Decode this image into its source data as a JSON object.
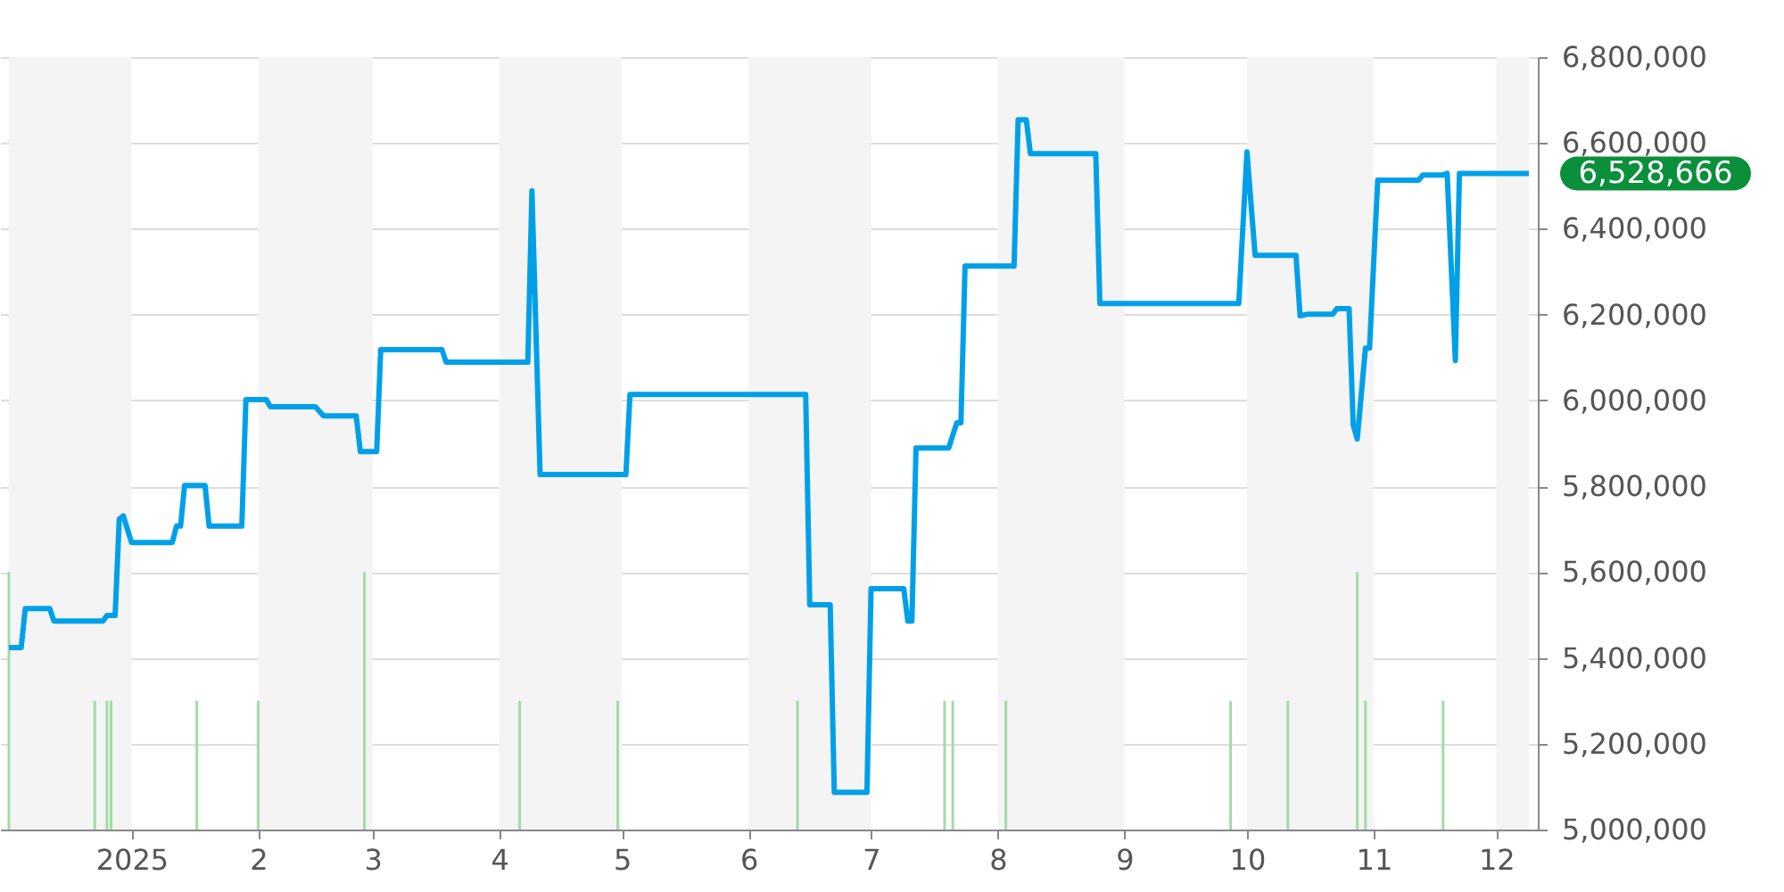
{
  "chart_data": {
    "type": "line",
    "xlim": [
      "2024-12-02",
      "2025-12-09"
    ],
    "xticks": [
      {
        "value": "2025-01-01",
        "label": "2025"
      },
      {
        "value": "2025-02-01",
        "label": "2"
      },
      {
        "value": "2025-03-01",
        "label": "3"
      },
      {
        "value": "2025-04-01",
        "label": "4"
      },
      {
        "value": "2025-05-01",
        "label": "5"
      },
      {
        "value": "2025-06-01",
        "label": "6"
      },
      {
        "value": "2025-07-01",
        "label": "7"
      },
      {
        "value": "2025-08-01",
        "label": "8"
      },
      {
        "value": "2025-09-01",
        "label": "9"
      },
      {
        "value": "2025-10-01",
        "label": "10"
      },
      {
        "value": "2025-11-01",
        "label": "11"
      },
      {
        "value": "2025-12-01",
        "label": "12"
      }
    ],
    "ylim": [
      5000000,
      6800000
    ],
    "yticks": [
      {
        "value": 5000000,
        "label": "5,000,000"
      },
      {
        "value": 5200000,
        "label": "5,200,000"
      },
      {
        "value": 5400000,
        "label": "5,400,000"
      },
      {
        "value": 5600000,
        "label": "5,600,000"
      },
      {
        "value": 5800000,
        "label": "5,800,000"
      },
      {
        "value": 6000000,
        "label": "6,000,000"
      },
      {
        "value": 6200000,
        "label": "6,200,000"
      },
      {
        "value": 6400000,
        "label": "6,400,000"
      },
      {
        "value": 6600000,
        "label": "6,600,000"
      },
      {
        "value": 6800000,
        "label": "6,800,000"
      }
    ],
    "grid": "y",
    "series": [
      {
        "type": "bar",
        "color": "#a3dba5",
        "x": [
          "2024-12-02",
          "2024-12-23",
          "2024-12-26",
          "2024-12-27",
          "2025-01-17",
          "2025-02-01",
          "2025-02-27",
          "2025-04-06",
          "2025-04-30",
          "2025-06-13",
          "2025-07-19",
          "2025-07-21",
          "2025-08-03",
          "2025-09-27",
          "2025-10-11",
          "2025-10-28",
          "2025-10-30",
          "2025-11-18"
        ],
        "values": [
          5600000,
          5300000,
          5300000,
          5300000,
          5300000,
          5300000,
          5600000,
          5300000,
          5300000,
          5300000,
          5300000,
          5300000,
          5300000,
          5300000,
          5300000,
          5600000,
          5300000,
          5300000
        ]
      },
      {
        "color": "#00a0e9",
        "x": [
          "2024-12-02",
          "2024-12-05",
          "2024-12-06",
          "2024-12-12",
          "2024-12-13",
          "2024-12-25",
          "2024-12-26",
          "2024-12-28",
          "2024-12-29",
          "2024-12-30",
          "2025-01-01",
          "2025-01-11",
          "2025-01-12",
          "2025-01-13",
          "2025-01-14",
          "2025-01-19",
          "2025-01-20",
          "2025-01-28",
          "2025-01-29",
          "2025-02-03",
          "2025-02-04",
          "2025-02-15",
          "2025-02-17",
          "2025-02-25",
          "2025-02-26",
          "2025-03-02",
          "2025-03-03",
          "2025-03-18",
          "2025-03-19",
          "2025-04-08",
          "2025-04-09",
          "2025-04-11",
          "2025-05-02",
          "2025-05-03",
          "2025-06-15",
          "2025-06-16",
          "2025-06-21",
          "2025-06-22",
          "2025-06-30",
          "2025-07-01",
          "2025-07-09",
          "2025-07-10",
          "2025-07-11",
          "2025-07-12",
          "2025-07-20",
          "2025-07-22",
          "2025-07-23",
          "2025-07-24",
          "2025-08-05",
          "2025-08-06",
          "2025-08-08",
          "2025-08-09",
          "2025-08-25",
          "2025-08-26",
          "2025-09-29",
          "2025-10-01",
          "2025-10-03",
          "2025-10-13",
          "2025-10-14",
          "2025-10-16",
          "2025-10-22",
          "2025-10-23",
          "2025-10-26",
          "2025-10-27",
          "2025-10-28",
          "2025-10-30",
          "2025-10-31",
          "2025-11-02",
          "2025-11-12",
          "2025-11-13",
          "2025-11-18",
          "2025-11-19",
          "2025-11-21",
          "2025-11-22",
          "2025-12-09"
        ],
        "values": [
          5424000,
          5424000,
          5515000,
          5515000,
          5486000,
          5486000,
          5499000,
          5499000,
          5723000,
          5731000,
          5669000,
          5669000,
          5707000,
          5707000,
          5802000,
          5802000,
          5707000,
          5707000,
          6002000,
          6002000,
          5985000,
          5985000,
          5964000,
          5964000,
          5881000,
          5881000,
          6118000,
          6118000,
          6089000,
          6089000,
          6488000,
          5827000,
          5827000,
          6014000,
          6014000,
          5524000,
          5524000,
          5087000,
          5087000,
          5561000,
          5561000,
          5486000,
          5486000,
          5889000,
          5889000,
          5948000,
          5948000,
          6313000,
          6313000,
          6654000,
          6654000,
          6575000,
          6575000,
          6226000,
          6226000,
          6579000,
          6338000,
          6338000,
          6197000,
          6201000,
          6201000,
          6214000,
          6214000,
          5943000,
          5910000,
          6122000,
          6122000,
          6513000,
          6513000,
          6525000,
          6525000,
          6529000,
          6093000,
          6528666,
          6528666
        ]
      }
    ],
    "bands": [
      {
        "axis": "x",
        "from": "2024-12-02",
        "to": "2025-01-01",
        "color": "#f4f4f4"
      },
      {
        "axis": "x",
        "from": "2025-02-01",
        "to": "2025-03-01",
        "color": "#f4f4f4"
      },
      {
        "axis": "x",
        "from": "2025-04-01",
        "to": "2025-05-01",
        "color": "#f4f4f4"
      },
      {
        "axis": "x",
        "from": "2025-06-01",
        "to": "2025-07-01",
        "color": "#f4f4f4"
      },
      {
        "axis": "x",
        "from": "2025-08-01",
        "to": "2025-09-01",
        "color": "#f4f4f4"
      },
      {
        "axis": "x",
        "from": "2025-10-01",
        "to": "2025-11-01",
        "color": "#f4f4f4"
      },
      {
        "axis": "x",
        "from": "2025-12-01",
        "to": "2025-12-09",
        "color": "#f4f4f4"
      }
    ],
    "annotations": [
      {
        "text": "6,528,666",
        "x": "2025-12-09",
        "y": 6528666
      }
    ]
  }
}
